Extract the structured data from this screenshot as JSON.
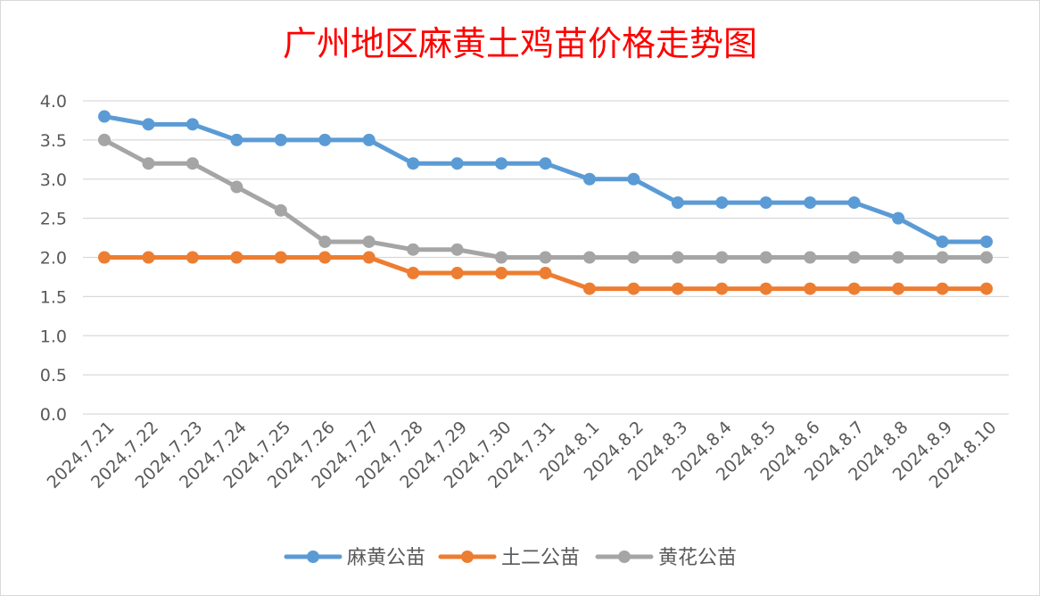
{
  "chart_data": {
    "type": "line",
    "title": "广州地区麻黄土鸡苗价格走势图",
    "xlabel": "",
    "ylabel": "",
    "ylim": [
      0,
      4.0
    ],
    "yticks": [
      "0.0",
      "0.5",
      "1.0",
      "1.5",
      "2.0",
      "2.5",
      "3.0",
      "3.5",
      "4.0"
    ],
    "grid": true,
    "legend_position": "bottom",
    "categories": [
      "2024.7.21",
      "2024.7.22",
      "2024.7.23",
      "2024.7.24",
      "2024.7.25",
      "2024.7.26",
      "2024.7.27",
      "2024.7.28",
      "2024.7.29",
      "2024.7.30",
      "2024.7.31",
      "2024.8.1",
      "2024.8.2",
      "2024.8.3",
      "2024.8.4",
      "2024.8.5",
      "2024.8.6",
      "2024.8.7",
      "2024.8.8",
      "2024.8.9",
      "2024.8.10"
    ],
    "series": [
      {
        "name": "麻黄公苗",
        "color": "#5b9bd5",
        "values": [
          3.8,
          3.7,
          3.7,
          3.5,
          3.5,
          3.5,
          3.5,
          3.2,
          3.2,
          3.2,
          3.2,
          3.0,
          3.0,
          2.7,
          2.7,
          2.7,
          2.7,
          2.7,
          2.5,
          2.2,
          2.2
        ]
      },
      {
        "name": "土二公苗",
        "color": "#ed7d31",
        "values": [
          2.0,
          2.0,
          2.0,
          2.0,
          2.0,
          2.0,
          2.0,
          1.8,
          1.8,
          1.8,
          1.8,
          1.6,
          1.6,
          1.6,
          1.6,
          1.6,
          1.6,
          1.6,
          1.6,
          1.6,
          1.6
        ]
      },
      {
        "name": "黄花公苗",
        "color": "#a5a5a5",
        "values": [
          3.5,
          3.2,
          3.2,
          2.9,
          2.6,
          2.2,
          2.2,
          2.1,
          2.1,
          2.0,
          2.0,
          2.0,
          2.0,
          2.0,
          2.0,
          2.0,
          2.0,
          2.0,
          2.0,
          2.0,
          2.0
        ]
      }
    ]
  }
}
